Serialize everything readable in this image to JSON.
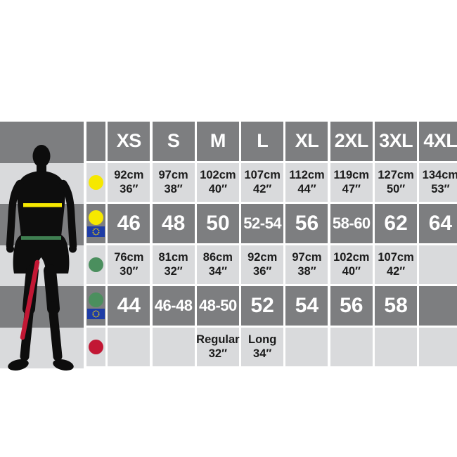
{
  "colors": {
    "cell_dark": "#7d7e80",
    "cell_light": "#d9dadc",
    "header_text": "#ffffff",
    "value_text_light_rows": "#1b1b1b",
    "chest_indicator": "#f6e800",
    "waist_indicator": "#4b8f5e",
    "waist_line": "#3f7f51",
    "inseam_indicator": "#c21734",
    "eu_flag_blue": "#1d3ca6",
    "eu_flag_stars": "#ffd700",
    "silhouette": "#0d0d0d"
  },
  "chart_data": {
    "type": "table",
    "title": "",
    "columns": [
      "XS",
      "S",
      "M",
      "L",
      "XL",
      "2XL",
      "3XL",
      "4XL"
    ],
    "rows": [
      {
        "name": "chest-measurement-row",
        "indicator": {
          "icon": "yellow-dot",
          "color_key": "chest_indicator"
        },
        "eu_flag": false,
        "row_style": "light",
        "cells": [
          [
            "92cm",
            "36″"
          ],
          [
            "97cm",
            "38″"
          ],
          [
            "102cm",
            "40″"
          ],
          [
            "107cm",
            "42″"
          ],
          [
            "112cm",
            "44″"
          ],
          [
            "119cm",
            "47″"
          ],
          [
            "127cm",
            "50″"
          ],
          [
            "134cm",
            "53″"
          ]
        ]
      },
      {
        "name": "chest-eu-size-row",
        "indicator": {
          "icon": "yellow-dot",
          "color_key": "chest_indicator"
        },
        "eu_flag": true,
        "row_style": "dark",
        "cells": [
          [
            "46"
          ],
          [
            "48"
          ],
          [
            "50"
          ],
          [
            "52-54"
          ],
          [
            "56"
          ],
          [
            "58-60"
          ],
          [
            "62"
          ],
          [
            "64"
          ]
        ]
      },
      {
        "name": "waist-measurement-row",
        "indicator": {
          "icon": "green-dot",
          "color_key": "waist_indicator"
        },
        "eu_flag": false,
        "row_style": "light",
        "cells": [
          [
            "76cm",
            "30″"
          ],
          [
            "81cm",
            "32″"
          ],
          [
            "86cm",
            "34″"
          ],
          [
            "92cm",
            "36″"
          ],
          [
            "97cm",
            "38″"
          ],
          [
            "102cm",
            "40″"
          ],
          [
            "107cm",
            "42″"
          ],
          []
        ]
      },
      {
        "name": "waist-eu-size-row",
        "indicator": {
          "icon": "green-dot",
          "color_key": "waist_indicator"
        },
        "eu_flag": true,
        "row_style": "dark",
        "cells": [
          [
            "44"
          ],
          [
            "46-48"
          ],
          [
            "48-50"
          ],
          [
            "52"
          ],
          [
            "54"
          ],
          [
            "56"
          ],
          [
            "58"
          ],
          []
        ]
      },
      {
        "name": "inside-leg-row",
        "indicator": {
          "icon": "red-dot",
          "color_key": "inseam_indicator"
        },
        "eu_flag": false,
        "row_style": "light",
        "cells": [
          [],
          [],
          [
            "Regular",
            "32″"
          ],
          [
            "Long",
            "34″"
          ],
          [],
          [],
          [],
          []
        ]
      }
    ]
  }
}
